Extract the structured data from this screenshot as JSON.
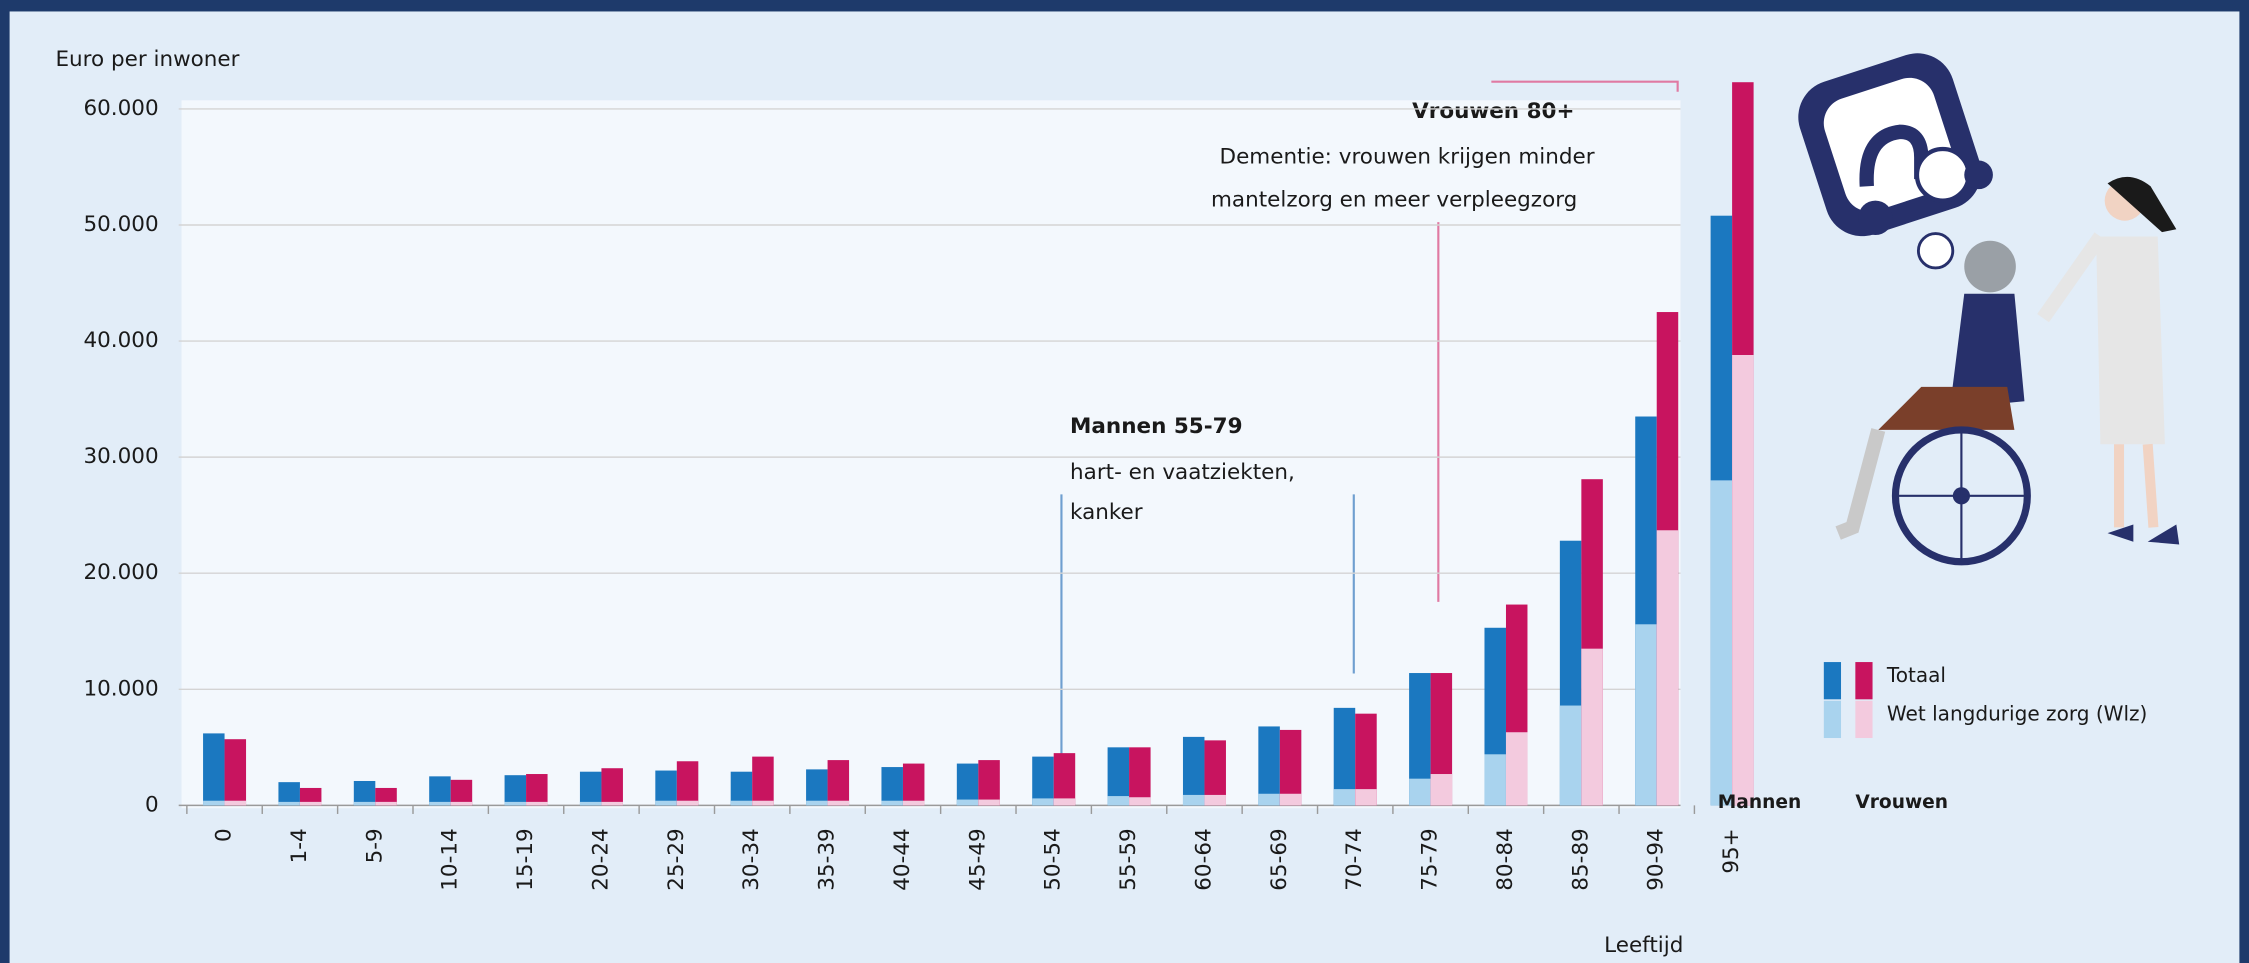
{
  "chart_data": {
    "type": "bar",
    "y_label": "Euro per inwoner",
    "x_label": "Leeftijd",
    "categories": [
      "0",
      "1-4",
      "5-9",
      "10-14",
      "15-19",
      "20-24",
      "25-29",
      "30-34",
      "35-39",
      "40-44",
      "45-49",
      "50-54",
      "55-59",
      "60-64",
      "65-69",
      "70-74",
      "75-79",
      "80-84",
      "85-89",
      "90-94",
      "95+"
    ],
    "measures": [
      "Totaal",
      "Wet langdurige zorg (Wlz)"
    ],
    "series": [
      {
        "name": "Mannen",
        "color": "#1b78c0",
        "wlz_color": "#a9d3ee",
        "values": [
          6200,
          2000,
          2100,
          2500,
          2600,
          2900,
          3000,
          2900,
          3100,
          3300,
          3600,
          4200,
          5000,
          5900,
          6800,
          8400,
          11400,
          15300,
          22800,
          33500,
          50800
        ],
        "wlz_values": [
          400,
          300,
          300,
          300,
          300,
          300,
          400,
          400,
          400,
          400,
          500,
          600,
          800,
          900,
          1000,
          1400,
          2300,
          4400,
          8600,
          15600,
          28000
        ]
      },
      {
        "name": "Vrouwen",
        "color": "#c8145f",
        "wlz_color": "#f3cade",
        "values": [
          5700,
          1500,
          1500,
          2200,
          2700,
          3200,
          3800,
          4200,
          3900,
          3600,
          3900,
          4500,
          5000,
          5600,
          6500,
          7900,
          11400,
          17300,
          28100,
          42500,
          62300
        ],
        "wlz_values": [
          400,
          300,
          300,
          300,
          300,
          300,
          400,
          400,
          400,
          400,
          500,
          600,
          700,
          900,
          1000,
          1400,
          2700,
          6300,
          13500,
          23700,
          38800
        ]
      }
    ],
    "ylim": [
      0,
      60000
    ],
    "yticks": [
      0,
      {
        "value": 10000,
        "label": "10.000"
      },
      {
        "value": 20000,
        "label": "20.000"
      },
      {
        "value": 30000,
        "label": "30.000"
      },
      {
        "value": 40000,
        "label": "40.000"
      },
      {
        "value": 50000,
        "label": "50.000"
      },
      {
        "value": 60000,
        "label": "60.000"
      }
    ],
    "grid": true,
    "annotations": [
      {
        "title": "Mannen 55-79",
        "lines": [
          "hart- en vaatziekten,",
          "kanker"
        ]
      },
      {
        "title": "Vrouwen 80+",
        "lines": [
          "Dementie: vrouwen krijgen minder",
          "mantelzorg en meer verpleegzorg"
        ]
      }
    ]
  }
}
